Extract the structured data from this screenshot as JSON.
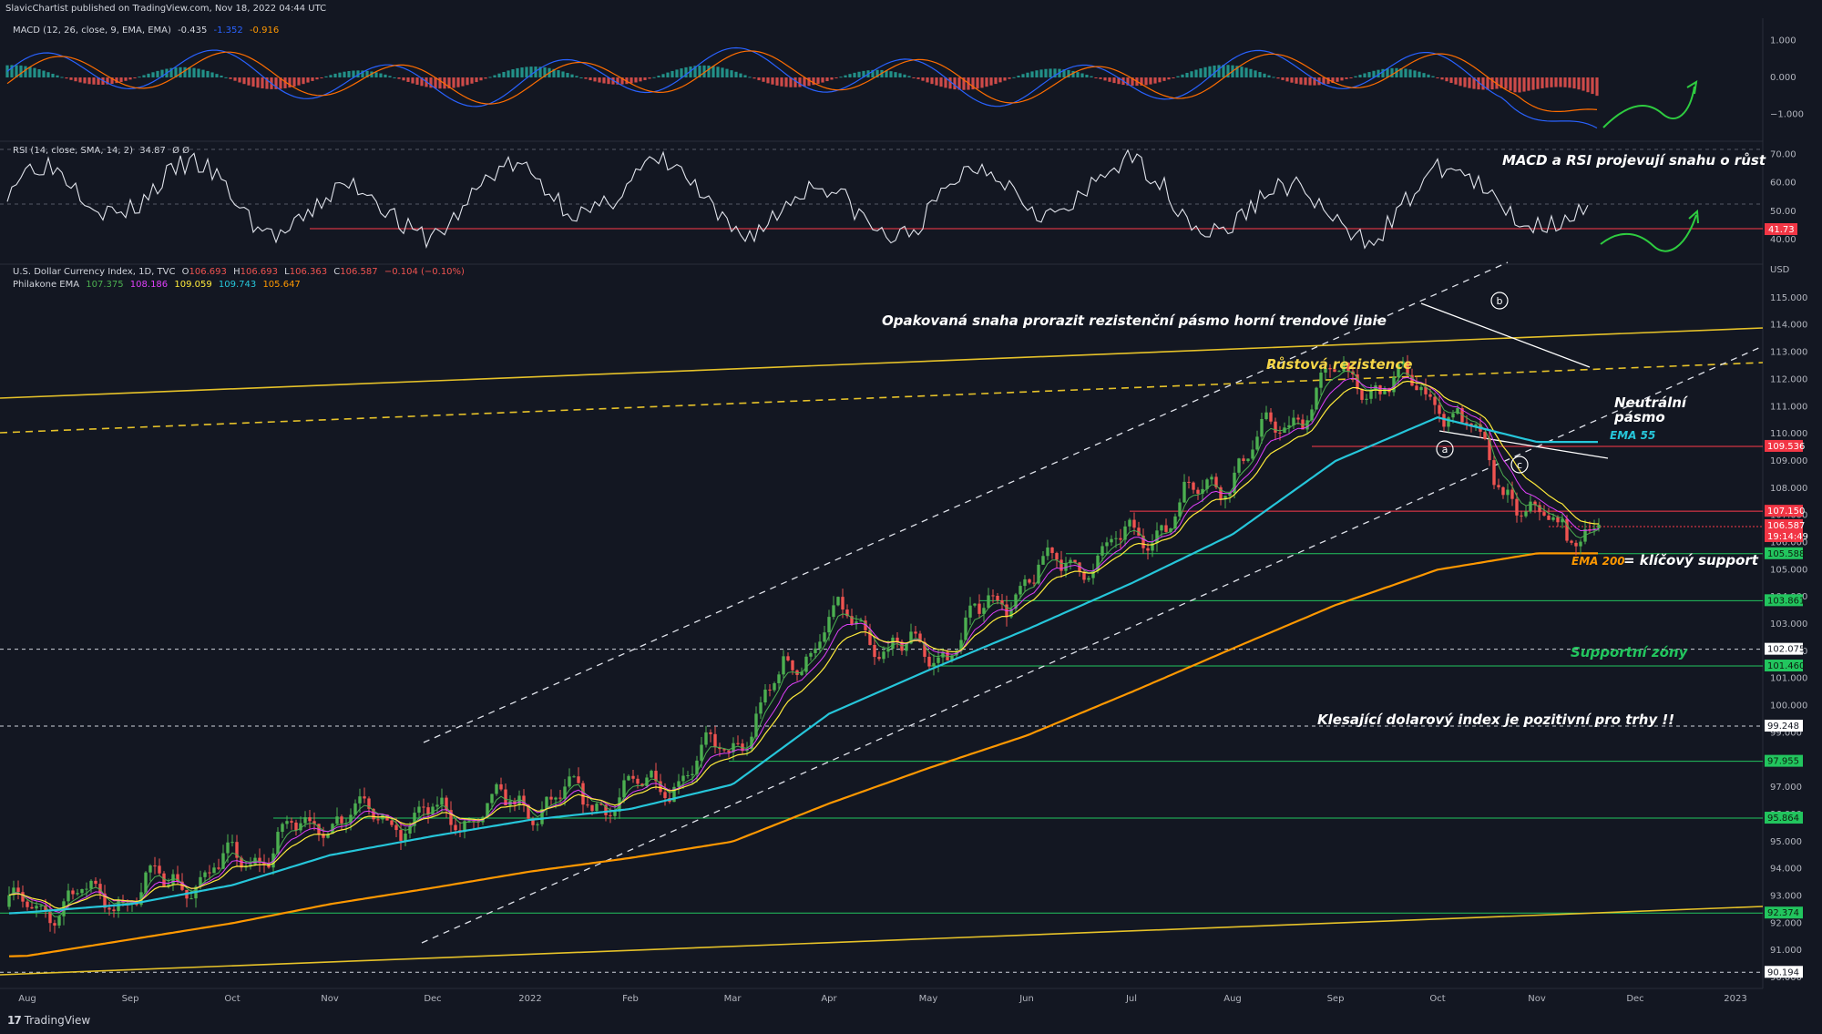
{
  "header": {
    "published": "SlavicChartist published on TradingView.com, Nov 18, 2022 04:44 UTC"
  },
  "macd": {
    "label": "MACD (12, 26, close, 9, EMA, EMA)",
    "v1": "-0.435",
    "v2": "-1.352",
    "v3": "-0.916",
    "ticks": [
      "1.000",
      "0.000",
      "−1.000"
    ],
    "colors": {
      "macd": "#2962ff",
      "signal": "#ff6d00",
      "hist_up": "#26a69a",
      "hist_dn": "#ef5350"
    }
  },
  "rsi": {
    "label": "RSI (14, close, SMA, 14, 2)",
    "value": "34.87",
    "extras": "Ø Ø",
    "ticks": [
      "70.00",
      "60.00",
      "50.00",
      "40.00"
    ],
    "level_badge": "41.73"
  },
  "price": {
    "label": "U.S. Dollar Currency Index, 1D, TVC",
    "o_label": "O",
    "o": "106.693",
    "h_label": "H",
    "h": "106.693",
    "l_label": "L",
    "l": "106.363",
    "c_label": "C",
    "c": "106.587",
    "chg": "−0.104 (−0.10%)",
    "ema_label": "Philakone EMA",
    "ema_values": [
      "107.375",
      "108.186",
      "109.059",
      "109.743",
      "105.647"
    ],
    "ema_colors": [
      "#4caf50",
      "#e040fb",
      "#ffeb3b",
      "#26c6da",
      "#ff9800"
    ],
    "currency": "USD",
    "ticks": [
      "115.000",
      "114.000",
      "113.000",
      "112.000",
      "111.000",
      "110.000",
      "109.000",
      "108.000",
      "107.000",
      "106.000",
      "105.000",
      "104.000",
      "103.000",
      "102.000",
      "101.000",
      "100.000",
      "99.000",
      "98.000",
      "97.000",
      "96.000",
      "95.000",
      "94.000",
      "93.000",
      "92.000",
      "91.000",
      "90.000"
    ],
    "badges": [
      {
        "text": "109.536",
        "kind": "red"
      },
      {
        "text": "107.150",
        "kind": "red"
      },
      {
        "text": "106.587",
        "kind": "red"
      },
      {
        "text": "19:14:49",
        "kind": "red"
      },
      {
        "text": "105.588",
        "kind": "green"
      },
      {
        "text": "103.861",
        "kind": "green"
      },
      {
        "text": "102.075",
        "kind": "white"
      },
      {
        "text": "101.460",
        "kind": "green"
      },
      {
        "text": "99.248",
        "kind": "white"
      },
      {
        "text": "97.955",
        "kind": "green"
      },
      {
        "text": "95.864",
        "kind": "green"
      },
      {
        "text": "92.374",
        "kind": "green"
      },
      {
        "text": "90.194",
        "kind": "white"
      }
    ]
  },
  "annotations": {
    "macd_rsi": "MACD a RSI projevují snahu o růst",
    "attempt": "Opakovaná snaha prorazit rezistenční pásmo horní trendové linie",
    "growth_res": "Růstová rezistence",
    "neutral_1": "Neutrální",
    "neutral_2": "pásmo",
    "ema55": "EMA 55",
    "ema200": "EMA 200",
    "key_support": "= klíčový support",
    "support_zones": "Supportní zóny",
    "falling_index": "Klesající dolarový index je pozitivní pro trhy !!",
    "wave_a": "a",
    "wave_b": "b",
    "wave_c": "c"
  },
  "x_axis": [
    "Aug",
    "Sep",
    "Oct",
    "Nov",
    "Dec",
    "2022",
    "Feb",
    "Mar",
    "Apr",
    "May",
    "Jun",
    "Jul",
    "Aug",
    "Sep",
    "Oct",
    "Nov",
    "Dec",
    "2023"
  ],
  "footer": {
    "brand": "TradingView",
    "brand_mark": "17"
  },
  "chart_data": {
    "type": "candlestick",
    "title": "U.S. Dollar Currency Index, 1D, TVC",
    "ylim": [
      89.6,
      115.9
    ],
    "y_scale": "linear",
    "grid": false,
    "x": [
      "2021-08",
      "2021-09",
      "2021-10",
      "2021-11",
      "2021-12",
      "2022-01",
      "2022-02",
      "2022-03",
      "2022-04",
      "2022-05",
      "2022-06",
      "2022-07",
      "2022-08",
      "2022-09",
      "2022-10",
      "2022-11"
    ],
    "close": [
      92.6,
      93.1,
      94.1,
      96.0,
      95.8,
      96.4,
      96.7,
      98.5,
      103.2,
      101.7,
      104.7,
      106.0,
      108.7,
      112.1,
      111.5,
      106.6
    ],
    "series": [
      {
        "name": "EMA 55",
        "values": [
          92.4,
          92.7,
          93.4,
          94.5,
          95.2,
          95.8,
          96.2,
          97.1,
          99.7,
          101.3,
          102.8,
          104.5,
          106.3,
          109.0,
          110.6,
          109.7
        ]
      },
      {
        "name": "EMA 200",
        "values": [
          90.8,
          91.4,
          92.0,
          92.7,
          93.3,
          93.9,
          94.4,
          95.0,
          96.4,
          97.7,
          98.9,
          100.5,
          102.1,
          103.7,
          105.0,
          105.6
        ]
      }
    ],
    "levels": [
      109.536,
      107.15,
      106.587,
      105.588,
      103.861,
      102.075,
      101.46,
      99.248,
      97.955,
      95.864,
      92.374,
      90.194
    ],
    "macd_ylim": [
      -1.6,
      1.6
    ],
    "rsi_ylim": [
      33,
      73
    ]
  }
}
